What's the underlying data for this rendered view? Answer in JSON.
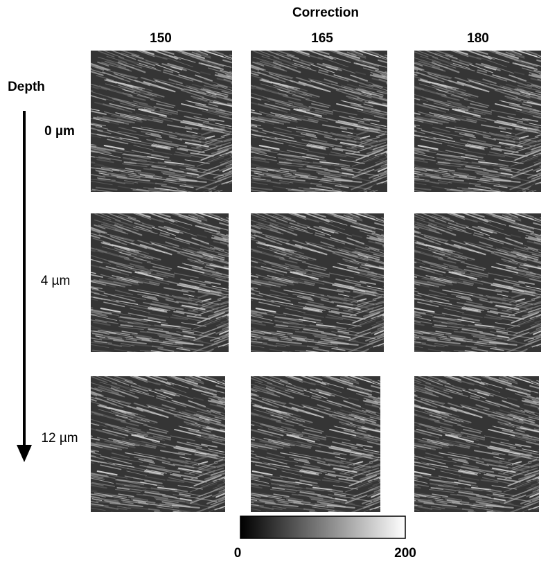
{
  "header": {
    "title": "Correction",
    "columns": [
      "150",
      "165",
      "180"
    ]
  },
  "depth": {
    "title": "Depth",
    "rows": [
      "0 µm",
      "4 µm",
      "12 µm"
    ]
  },
  "colorbar": {
    "min": "0",
    "max": "200"
  }
}
